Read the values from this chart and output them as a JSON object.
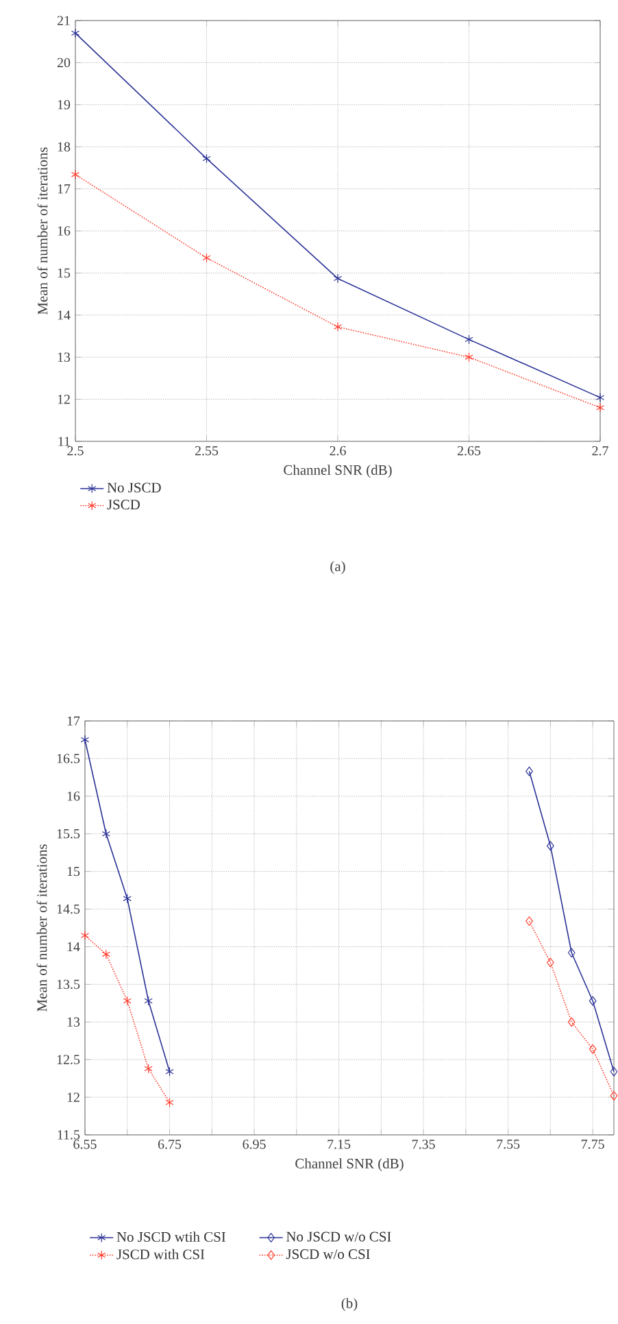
{
  "chart_data": [
    {
      "type": "line",
      "xlabel": "Channel SNR (dB)",
      "ylabel": "Mean of number of iterations",
      "x": [
        2.5,
        2.55,
        2.6,
        2.65,
        2.7
      ],
      "series": [
        {
          "name": "No JSCD",
          "color": "#2a3196",
          "values": [
            20.7,
            17.72,
            14.87,
            13.42,
            12.04
          ],
          "marker": "cross",
          "line_style": "solid"
        },
        {
          "name": "JSCD",
          "color": "#ff3b2b",
          "values": [
            17.34,
            15.36,
            13.72,
            13.0,
            11.8
          ],
          "marker": "cross",
          "line_style": "dotted"
        }
      ],
      "xlim": [
        2.5,
        2.7
      ],
      "ylim": [
        11,
        21
      ],
      "xticks": [
        2.5,
        2.55,
        2.6,
        2.65,
        2.7
      ],
      "yticks": [
        11,
        12,
        13,
        14,
        15,
        16,
        17,
        18,
        19,
        20,
        21
      ],
      "grid": true,
      "legend": "bottom",
      "annotations": [
        "(a)"
      ]
    },
    {
      "type": "line",
      "xlabel": "Channel SNR (dB)",
      "ylabel": "Mean of number of iterations",
      "series": [
        {
          "name": "No JSCD wtih CSI",
          "color": "#2a3196",
          "x": [
            6.55,
            6.6,
            6.65,
            6.7,
            6.75
          ],
          "values": [
            16.75,
            15.5,
            14.64,
            13.28,
            12.34
          ],
          "marker": "cross",
          "line_style": "solid"
        },
        {
          "name": "JSCD with CSI",
          "color": "#ff3b2b",
          "x": [
            6.55,
            6.6,
            6.65,
            6.7,
            6.75
          ],
          "values": [
            14.15,
            13.9,
            13.28,
            12.38,
            11.93
          ],
          "marker": "cross",
          "line_style": "dotted"
        },
        {
          "name": "No JSCD w/o CSI",
          "color": "#2a3196",
          "x": [
            7.6,
            7.65,
            7.7,
            7.75,
            7.8
          ],
          "values": [
            16.33,
            15.34,
            13.92,
            13.28,
            12.34
          ],
          "marker": "diamond",
          "line_style": "solid"
        },
        {
          "name": "JSCD w/o CSI",
          "color": "#ff3b2b",
          "x": [
            7.6,
            7.65,
            7.7,
            7.75,
            7.8
          ],
          "values": [
            14.34,
            13.79,
            13.0,
            12.64,
            12.02
          ],
          "marker": "diamond",
          "line_style": "dotted"
        }
      ],
      "xlim": [
        6.55,
        7.8
      ],
      "ylim": [
        11.5,
        17
      ],
      "xticks": [
        6.55,
        {
          "value": 6.65,
          "label": null
        },
        6.75,
        {
          "value": 6.85,
          "label": null
        },
        6.95,
        {
          "value": 7.05,
          "label": null
        },
        7.15,
        {
          "value": 7.25,
          "label": null
        },
        7.35,
        {
          "value": 7.45,
          "label": null
        },
        7.55,
        {
          "value": 7.65,
          "label": null
        },
        7.75
      ],
      "yticks": [
        11.5,
        12,
        12.5,
        13,
        13.5,
        14,
        14.5,
        15,
        15.5,
        16,
        16.5,
        17
      ],
      "grid": true,
      "legend": "bottom",
      "annotations": [
        "(b)"
      ]
    }
  ]
}
